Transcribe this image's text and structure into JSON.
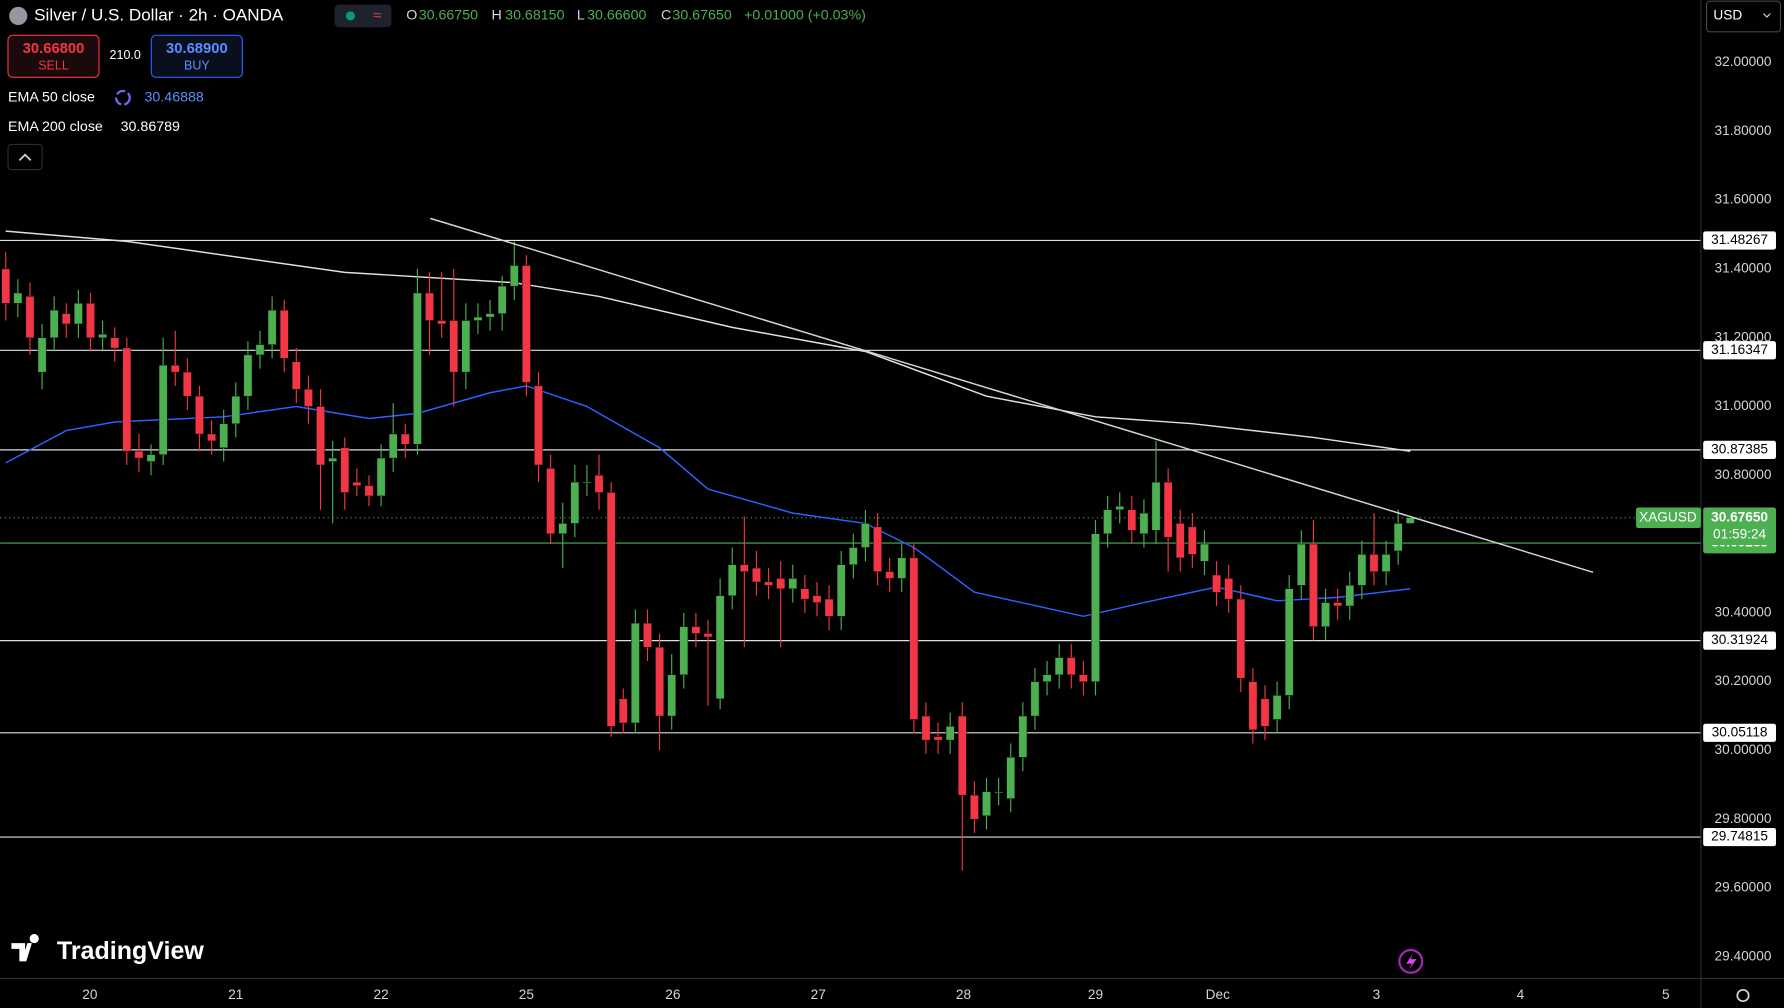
{
  "header": {
    "title": "Silver / U.S. Dollar · 2h · OANDA",
    "ohlc": [
      {
        "label": "O",
        "value": "30.66750"
      },
      {
        "label": "H",
        "value": "30.68150"
      },
      {
        "label": "L",
        "value": "30.66600"
      },
      {
        "label": "C",
        "value": "30.67650"
      }
    ],
    "change": "+0.01000 (+0.03%)",
    "sell": {
      "price": "30.66800",
      "label": "SELL"
    },
    "spread": "210.0",
    "buy": {
      "price": "30.68900",
      "label": "BUY"
    },
    "currency": "USD",
    "brand": "TradingView"
  },
  "chart_data": {
    "type": "candlestick",
    "symbol": "XAGUSD",
    "countdown": "01:59:24",
    "up_color": "#4caf50",
    "down_color": "#f23645",
    "x": [
      0,
      1,
      2,
      3,
      4,
      5,
      6,
      7,
      8,
      9,
      10,
      11,
      12,
      13,
      14,
      15,
      16,
      17,
      18,
      19,
      20,
      21,
      22,
      23,
      24,
      25,
      26,
      27,
      28,
      29,
      30,
      31,
      32,
      33,
      34,
      35,
      36,
      37,
      38,
      39,
      40,
      41,
      42,
      43,
      44,
      45,
      46,
      47,
      48,
      49,
      50,
      51,
      52,
      53,
      54,
      55,
      56,
      57,
      58,
      59,
      60,
      61,
      62,
      63,
      64,
      65,
      66,
      67,
      68,
      69,
      70,
      71,
      72,
      73,
      74,
      75,
      76,
      77,
      78,
      79,
      80,
      81,
      82,
      83,
      84,
      85,
      86,
      87,
      88,
      89,
      90,
      91,
      92,
      93,
      94,
      95,
      96,
      97,
      98,
      99,
      100,
      101,
      102,
      103,
      104,
      105,
      106,
      107,
      108,
      109,
      110,
      111,
      112,
      113,
      114,
      115,
      116
    ],
    "open": [
      31.4,
      31.3,
      31.32,
      31.1,
      31.2,
      31.27,
      31.24,
      31.3,
      31.2,
      31.2,
      31.17,
      30.87,
      30.84,
      30.86,
      31.12,
      31.1,
      31.03,
      30.92,
      30.88,
      30.95,
      31.03,
      31.15,
      31.18,
      31.28,
      31.13,
      31.05,
      31.0,
      30.84,
      30.88,
      30.78,
      30.77,
      30.74,
      30.85,
      30.92,
      30.89,
      31.33,
      31.25,
      31.25,
      31.1,
      31.25,
      31.26,
      31.27,
      31.35,
      31.41,
      31.06,
      30.82,
      30.63,
      30.66,
      30.78,
      30.8,
      30.75,
      30.15,
      30.08,
      30.37,
      30.3,
      30.1,
      30.22,
      30.36,
      30.34,
      30.15,
      30.45,
      30.54,
      30.53,
      30.49,
      30.5,
      30.47,
      30.47,
      30.45,
      30.44,
      30.39,
      30.54,
      30.59,
      30.65,
      30.52,
      30.5,
      30.56,
      30.1,
      30.04,
      30.03,
      30.1,
      29.87,
      29.81,
      29.88,
      29.86,
      29.98,
      30.1,
      30.2,
      30.22,
      30.27,
      30.22,
      30.2,
      30.63,
      30.7,
      30.7,
      30.63,
      30.64,
      30.78,
      30.66,
      30.65,
      30.55,
      30.51,
      30.5,
      30.44,
      30.2,
      30.15,
      30.09,
      30.16,
      30.48,
      30.6,
      30.36,
      30.43,
      30.42,
      30.48,
      30.57,
      30.52,
      30.58,
      30.66
    ],
    "high": [
      31.45,
      31.37,
      31.36,
      31.24,
      31.32,
      31.3,
      31.34,
      31.33,
      31.25,
      31.23,
      31.2,
      30.92,
      30.89,
      31.2,
      31.22,
      31.14,
      31.06,
      30.96,
      30.99,
      31.07,
      31.19,
      31.22,
      31.32,
      31.31,
      31.17,
      31.09,
      31.05,
      30.9,
      30.91,
      30.82,
      30.8,
      30.89,
      31.01,
      30.95,
      31.4,
      31.39,
      31.39,
      31.4,
      31.3,
      31.3,
      31.31,
      31.38,
      31.48,
      31.44,
      31.1,
      30.86,
      30.72,
      30.83,
      30.83,
      30.86,
      30.78,
      30.18,
      30.41,
      30.41,
      30.34,
      30.28,
      30.4,
      30.4,
      30.38,
      30.5,
      30.59,
      30.68,
      30.58,
      30.53,
      30.55,
      30.54,
      30.51,
      30.49,
      30.48,
      30.58,
      30.63,
      30.7,
      30.69,
      30.56,
      30.6,
      30.6,
      30.14,
      30.08,
      30.11,
      30.14,
      29.91,
      29.92,
      29.92,
      30.02,
      30.14,
      30.24,
      30.26,
      30.31,
      30.31,
      30.26,
      30.67,
      30.74,
      30.75,
      30.74,
      30.73,
      30.9,
      30.82,
      30.7,
      30.69,
      30.64,
      30.55,
      30.54,
      30.48,
      30.24,
      30.19,
      30.2,
      30.51,
      30.64,
      30.67,
      30.47,
      30.47,
      30.52,
      30.61,
      30.69,
      30.61,
      30.7,
      30.6815
    ],
    "low": [
      31.25,
      31.26,
      31.15,
      31.05,
      31.16,
      31.2,
      31.2,
      31.16,
      31.16,
      31.13,
      30.83,
      30.81,
      30.8,
      30.83,
      31.06,
      30.99,
      30.87,
      30.86,
      30.84,
      30.91,
      30.99,
      31.11,
      31.14,
      31.1,
      31.01,
      30.95,
      30.7,
      30.66,
      30.7,
      30.74,
      30.71,
      30.71,
      30.81,
      30.85,
      30.86,
      31.15,
      31.2,
      31.0,
      31.05,
      31.21,
      31.22,
      31.22,
      31.31,
      31.03,
      30.78,
      30.6,
      30.53,
      30.62,
      30.74,
      30.7,
      30.04,
      30.05,
      30.05,
      30.26,
      30.0,
      30.06,
      30.18,
      30.3,
      30.13,
      30.12,
      30.41,
      30.3,
      30.45,
      30.44,
      30.3,
      30.43,
      30.4,
      30.39,
      30.35,
      30.35,
      30.5,
      30.55,
      30.48,
      30.46,
      30.46,
      30.05,
      29.99,
      29.99,
      29.99,
      29.65,
      29.76,
      29.77,
      29.84,
      29.82,
      29.94,
      30.06,
      30.16,
      30.18,
      30.18,
      30.16,
      30.16,
      30.59,
      30.66,
      30.6,
      30.59,
      30.6,
      30.52,
      30.52,
      30.53,
      30.51,
      30.42,
      30.4,
      30.17,
      30.02,
      30.03,
      30.05,
      30.12,
      30.44,
      30.32,
      30.32,
      30.38,
      30.38,
      30.44,
      30.48,
      30.48,
      30.54,
      30.666
    ],
    "close": [
      31.3,
      31.33,
      31.2,
      31.2,
      31.28,
      31.24,
      31.3,
      31.2,
      31.21,
      31.17,
      30.87,
      30.85,
      30.86,
      31.12,
      31.1,
      31.03,
      30.92,
      30.9,
      30.95,
      31.03,
      31.15,
      31.18,
      31.28,
      31.14,
      31.05,
      31.0,
      30.83,
      30.85,
      30.75,
      30.77,
      30.74,
      30.85,
      30.92,
      30.89,
      31.33,
      31.25,
      31.24,
      31.1,
      31.25,
      31.26,
      31.27,
      31.35,
      31.41,
      31.07,
      30.83,
      30.63,
      30.66,
      30.78,
      30.78,
      30.75,
      30.07,
      30.08,
      30.37,
      30.3,
      30.1,
      30.22,
      30.36,
      30.34,
      30.33,
      30.45,
      30.54,
      30.52,
      30.49,
      30.48,
      30.47,
      30.5,
      30.44,
      30.43,
      30.39,
      30.54,
      30.59,
      30.66,
      30.52,
      30.5,
      30.56,
      30.09,
      30.03,
      30.03,
      30.07,
      29.87,
      29.8,
      29.88,
      29.88,
      29.98,
      30.1,
      30.2,
      30.22,
      30.27,
      30.22,
      30.2,
      30.63,
      30.7,
      30.71,
      30.64,
      30.69,
      30.78,
      30.62,
      30.56,
      30.57,
      30.6,
      30.46,
      30.44,
      30.21,
      30.06,
      30.07,
      30.16,
      30.47,
      30.6,
      30.36,
      30.43,
      30.42,
      30.48,
      30.57,
      30.52,
      30.57,
      30.66,
      30.6765
    ],
    "lines": [
      {
        "name": "EMA 50 close",
        "color": "#2962ff",
        "last": 30.46888,
        "x": [
          0,
          5,
          9,
          18,
          24,
          30,
          34,
          40,
          43,
          48,
          54,
          58,
          65,
          71,
          75,
          80,
          89,
          94,
          100,
          105,
          110,
          116
        ],
        "values": [
          30.836,
          30.93,
          30.955,
          30.97,
          31.0,
          30.965,
          30.98,
          31.04,
          31.06,
          31.0,
          30.88,
          30.76,
          30.69,
          30.66,
          30.59,
          30.46,
          30.39,
          30.43,
          30.475,
          30.435,
          30.445,
          30.47
        ]
      },
      {
        "name": "EMA 200 close",
        "color": "#e0e0e0",
        "last": 30.86789,
        "x": [
          0,
          10,
          28,
          42,
          49,
          60,
          71,
          81,
          90,
          98,
          108,
          116
        ],
        "values": [
          31.51,
          31.48,
          31.39,
          31.36,
          31.32,
          31.23,
          31.16,
          31.03,
          30.97,
          30.95,
          30.91,
          30.87
        ]
      }
    ],
    "trend_line": {
      "color": "#d1d4dc",
      "x": [
        35.06,
        131.1
      ],
      "values": [
        31.547,
        30.518
      ]
    },
    "levels": [
      31.48267,
      31.16347,
      30.87385,
      30.31924,
      30.05118,
      29.74815
    ],
    "marked_level": 30.60285,
    "last_price": {
      "value": 30.6765,
      "label": "30.67650"
    },
    "xlim": [
      -0.47,
      140.0
    ],
    "xticks": [
      {
        "value": 6.95,
        "label": "20"
      },
      {
        "value": 19.0,
        "label": "21"
      },
      {
        "value": 31.0,
        "label": "22"
      },
      {
        "value": 43.0,
        "label": "25"
      },
      {
        "value": 55.1,
        "label": "26"
      },
      {
        "value": 67.1,
        "label": "27"
      },
      {
        "value": 79.1,
        "label": "28"
      },
      {
        "value": 90.0,
        "label": "29"
      },
      {
        "value": 100.1,
        "label": "Dec"
      },
      {
        "value": 113.2,
        "label": "3"
      },
      {
        "value": 125.1,
        "label": "4"
      },
      {
        "value": 137.1,
        "label": "5"
      }
    ],
    "ylim": [
      29.3371,
      32.1819
    ],
    "yticks": [
      {
        "value": 29.4,
        "label": "29.40000"
      },
      {
        "value": 29.6,
        "label": "29.60000"
      },
      {
        "value": 29.8,
        "label": "29.80000"
      },
      {
        "value": 30.0,
        "label": "30.00000"
      },
      {
        "value": 30.2,
        "label": "30.20000"
      },
      {
        "value": 30.4,
        "label": "30.40000"
      },
      {
        "value": 30.6,
        "label": "30.60000"
      },
      {
        "value": 30.8,
        "label": "30.80000"
      },
      {
        "value": 31.0,
        "label": "31.00000"
      },
      {
        "value": 31.2,
        "label": "31.20000"
      },
      {
        "value": 31.4,
        "label": "31.40000"
      },
      {
        "value": 31.6,
        "label": "31.60000"
      },
      {
        "value": 31.8,
        "label": "31.80000"
      },
      {
        "value": 32.0,
        "label": "32.00000"
      }
    ],
    "grid": false
  }
}
